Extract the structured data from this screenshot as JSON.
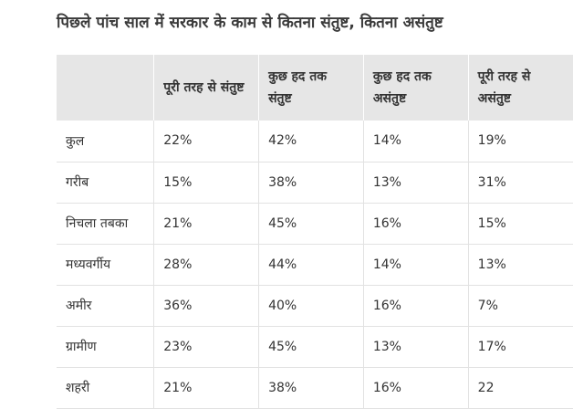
{
  "title": "पिछले पांच साल में सरकार के काम से कितना संतुष्ट, कितना असंतुष्ट",
  "table": {
    "header": [
      "",
      "पूरी तरह से संतुष्ट",
      "कुछ हद तक संतुष्ट",
      "कुछ हद तक असंतुष्ट",
      "पूरी तरह से असंतुष्ट"
    ],
    "rows": [
      [
        "कुल",
        "22%",
        "42%",
        "14%",
        "19%"
      ],
      [
        "गरीब",
        "15%",
        "38%",
        "13%",
        "31%"
      ],
      [
        "निचला तबका",
        "21%",
        "45%",
        "16%",
        "15%"
      ],
      [
        "मध्यवर्गीय",
        "28%",
        "44%",
        "14%",
        "13%"
      ],
      [
        "अमीर",
        "36%",
        "40%",
        "16%",
        "7%"
      ],
      [
        "ग्रामीण",
        "23%",
        "45%",
        "13%",
        "17%"
      ],
      [
        "शहरी",
        "21%",
        "38%",
        "16%",
        "22"
      ]
    ]
  }
}
